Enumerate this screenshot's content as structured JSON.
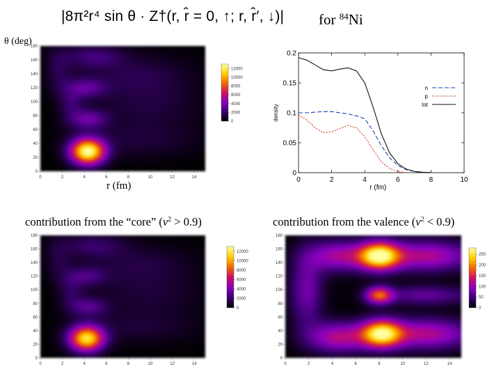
{
  "header": {
    "equation_text": "|8π²r⁴ sin θ · Z†(r, r̂ = 0, ↑; r, r̂′, ↓)|",
    "for_text": "for",
    "isotope_mass": "84",
    "isotope_symbol": "Ni"
  },
  "labels": {
    "theta_axis": "θ (deg)",
    "r_axis": "r (fm)",
    "core_caption_pre": "contribution from the “core” (",
    "core_caption_var": "v",
    "core_caption_exp": "2",
    "core_caption_post": " > 0.9)",
    "valence_caption_pre": "contribution from the valence (",
    "valence_caption_var": "v",
    "valence_caption_exp": "2",
    "valence_caption_post": " < 0.9)"
  },
  "colors": {
    "scale_stops": [
      "#000000",
      "#3a0070",
      "#8a00c0",
      "#cc1060",
      "#f26a00",
      "#ffd000",
      "#ffffa0"
    ]
  },
  "chart_data": [
    {
      "id": "total",
      "type": "heatmap",
      "title": "",
      "xlabel": "r (fm)",
      "ylabel": "θ (deg)",
      "xlim": [
        0,
        15
      ],
      "ylim": [
        0,
        180
      ],
      "x_ticks": [
        "0",
        "2",
        "4",
        "6",
        "8",
        "10",
        "12",
        "14"
      ],
      "y_ticks": [
        "0",
        "20",
        "40",
        "60",
        "80",
        "100",
        "120",
        "140",
        "160",
        "180"
      ],
      "colorbar_ticks": [
        "0",
        "2000",
        "4000",
        "6000",
        "8000",
        "10000",
        "12000"
      ],
      "colorbar_range": [
        0,
        13000
      ],
      "peaks": [
        {
          "r": 4.3,
          "theta": 28,
          "value": 13000,
          "sr": 1.1,
          "st": 13
        },
        {
          "r": 4.4,
          "theta": 75,
          "value": 3300,
          "sr": 1.2,
          "st": 10
        },
        {
          "r": 4.3,
          "theta": 120,
          "value": 2800,
          "sr": 1.2,
          "st": 10
        },
        {
          "r": 4.8,
          "theta": 165,
          "value": 2200,
          "sr": 2.0,
          "st": 12
        },
        {
          "r": 2.8,
          "theta": 100,
          "value": 1800,
          "sr": 0.8,
          "st": 20
        },
        {
          "r": 1.6,
          "theta": 145,
          "value": 1300,
          "sr": 0.8,
          "st": 25
        },
        {
          "r": 9.0,
          "theta": 135,
          "value": 1500,
          "sr": 3.5,
          "st": 22
        },
        {
          "r": 10.0,
          "theta": 90,
          "value": 1000,
          "sr": 3.5,
          "st": 20
        },
        {
          "r": 9.0,
          "theta": 45,
          "value": 1100,
          "sr": 4.0,
          "st": 18
        }
      ]
    },
    {
      "id": "density",
      "type": "line",
      "title": "",
      "xlabel": "r  (fm)",
      "ylabel": "density",
      "xlim": [
        0,
        10
      ],
      "ylim": [
        0,
        0.2
      ],
      "x_ticks": [
        "0",
        "2",
        "4",
        "6",
        "8",
        "10"
      ],
      "y_ticks": [
        "0",
        "0.05",
        "0.1",
        "0.15",
        "0.2"
      ],
      "legend_position": "right",
      "series": [
        {
          "name": "n",
          "color": "#1a3fb0",
          "dash": "6,3",
          "points": [
            [
              0,
              0.1
            ],
            [
              0.5,
              0.1
            ],
            [
              1,
              0.101
            ],
            [
              1.5,
              0.102
            ],
            [
              2,
              0.102
            ],
            [
              2.5,
              0.1
            ],
            [
              3,
              0.098
            ],
            [
              3.5,
              0.095
            ],
            [
              4,
              0.09
            ],
            [
              4.5,
              0.07
            ],
            [
              5,
              0.045
            ],
            [
              5.5,
              0.025
            ],
            [
              6,
              0.012
            ],
            [
              6.5,
              0.005
            ],
            [
              7,
              0.002
            ],
            [
              7.5,
              0.0005
            ],
            [
              8,
              0
            ]
          ]
        },
        {
          "name": "p",
          "color": "#d03020",
          "dash": "2,2",
          "points": [
            [
              0,
              0.096
            ],
            [
              0.5,
              0.088
            ],
            [
              1,
              0.075
            ],
            [
              1.5,
              0.067
            ],
            [
              2,
              0.068
            ],
            [
              2.5,
              0.074
            ],
            [
              3,
              0.079
            ],
            [
              3.5,
              0.075
            ],
            [
              4,
              0.06
            ],
            [
              4.5,
              0.038
            ],
            [
              5,
              0.018
            ],
            [
              5.5,
              0.007
            ],
            [
              6,
              0.002
            ],
            [
              6.5,
              0
            ]
          ]
        },
        {
          "name": "tot",
          "color": "#111111",
          "dash": "",
          "points": [
            [
              0,
              0.192
            ],
            [
              0.5,
              0.188
            ],
            [
              1,
              0.18
            ],
            [
              1.5,
              0.172
            ],
            [
              2,
              0.17
            ],
            [
              2.5,
              0.173
            ],
            [
              3,
              0.175
            ],
            [
              3.5,
              0.17
            ],
            [
              4,
              0.15
            ],
            [
              4.5,
              0.11
            ],
            [
              5,
              0.065
            ],
            [
              5.5,
              0.033
            ],
            [
              6,
              0.015
            ],
            [
              6.5,
              0.006
            ],
            [
              7,
              0.002
            ],
            [
              7.5,
              0.0008
            ],
            [
              8,
              0.0002
            ]
          ]
        }
      ]
    },
    {
      "id": "core",
      "type": "heatmap",
      "title": "contribution from the “core” (v2 > 0.9)",
      "xlabel": "",
      "ylabel": "",
      "xlim": [
        0,
        15
      ],
      "ylim": [
        0,
        180
      ],
      "x_ticks": [
        "0",
        "2",
        "4",
        "6",
        "8",
        "10",
        "12",
        "14"
      ],
      "y_ticks": [
        "0",
        "20",
        "40",
        "60",
        "80",
        "100",
        "120",
        "140",
        "160",
        "180"
      ],
      "colorbar_ticks": [
        "0",
        "2000",
        "4000",
        "6000",
        "8000",
        "10000",
        "12000"
      ],
      "colorbar_range": [
        0,
        13000
      ],
      "peaks": [
        {
          "r": 4.2,
          "theta": 28,
          "value": 11500,
          "sr": 1.1,
          "st": 13
        },
        {
          "r": 4.4,
          "theta": 75,
          "value": 2700,
          "sr": 1.2,
          "st": 10
        },
        {
          "r": 4.3,
          "theta": 120,
          "value": 2200,
          "sr": 1.2,
          "st": 10
        },
        {
          "r": 4.8,
          "theta": 165,
          "value": 1900,
          "sr": 2.0,
          "st": 12
        },
        {
          "r": 2.8,
          "theta": 100,
          "value": 1600,
          "sr": 0.8,
          "st": 20
        },
        {
          "r": 1.6,
          "theta": 145,
          "value": 1100,
          "sr": 0.8,
          "st": 25
        },
        {
          "r": 9.0,
          "theta": 135,
          "value": 1300,
          "sr": 3.5,
          "st": 22
        },
        {
          "r": 10.0,
          "theta": 90,
          "value": 900,
          "sr": 3.5,
          "st": 20
        },
        {
          "r": 9.0,
          "theta": 45,
          "value": 1000,
          "sr": 4.0,
          "st": 18
        }
      ]
    },
    {
      "id": "valence",
      "type": "heatmap",
      "title": "contribution from the valence (v2 < 0.9)",
      "xlabel": "",
      "ylabel": "",
      "xlim": [
        0,
        15
      ],
      "ylim": [
        0,
        180
      ],
      "x_ticks": [
        "0",
        "2",
        "4",
        "6",
        "8",
        "10",
        "12",
        "14"
      ],
      "y_ticks": [
        "0",
        "20",
        "40",
        "60",
        "80",
        "100",
        "120",
        "140",
        "160",
        "180"
      ],
      "colorbar_ticks": [
        "0",
        "50",
        "100",
        "150",
        "200",
        "250"
      ],
      "colorbar_range": [
        0,
        280
      ],
      "peaks": [
        {
          "r": 8.0,
          "theta": 150,
          "value": 255,
          "sr": 1.2,
          "st": 14
        },
        {
          "r": 8.0,
          "theta": 92,
          "value": 165,
          "sr": 0.8,
          "st": 9
        },
        {
          "r": 8.2,
          "theta": 35,
          "value": 240,
          "sr": 1.2,
          "st": 14
        },
        {
          "r": 12.0,
          "theta": 150,
          "value": 120,
          "sr": 2.8,
          "st": 16
        },
        {
          "r": 12.0,
          "theta": 35,
          "value": 120,
          "sr": 2.8,
          "st": 16
        },
        {
          "r": 12.0,
          "theta": 92,
          "value": 70,
          "sr": 2.8,
          "st": 10
        },
        {
          "r": 4.5,
          "theta": 30,
          "value": 120,
          "sr": 1.8,
          "st": 16
        },
        {
          "r": 4.5,
          "theta": 150,
          "value": 110,
          "sr": 1.8,
          "st": 16
        },
        {
          "r": 1.8,
          "theta": 100,
          "value": 80,
          "sr": 1.0,
          "st": 40
        }
      ]
    }
  ]
}
